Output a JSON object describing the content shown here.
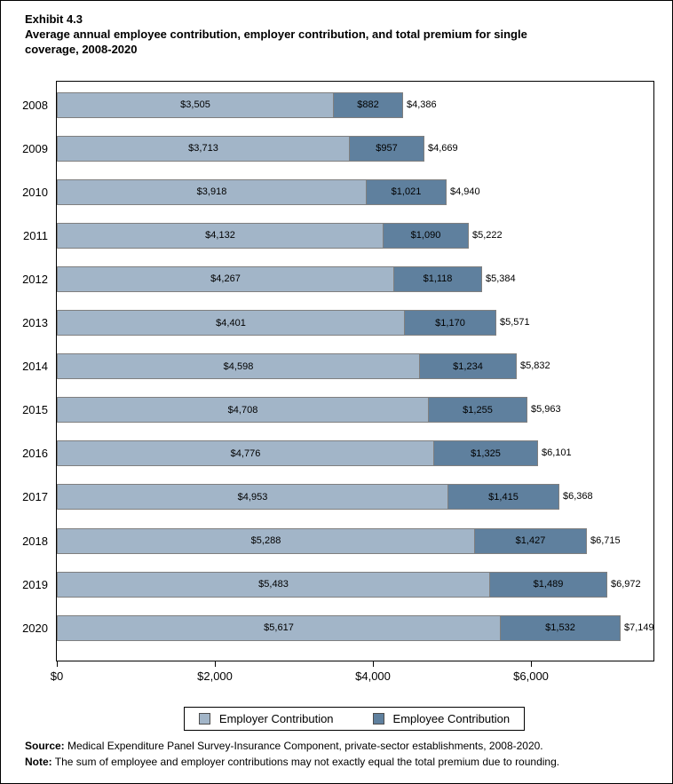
{
  "title": {
    "exhibit": "Exhibit 4.3",
    "caption": "Average annual employee contribution, employer contribution, and total premium for single\ncoverage, 2008-2020"
  },
  "chart_data": {
    "type": "bar",
    "orientation": "horizontal",
    "stacked": true,
    "grid": false,
    "categories": [
      "2008",
      "2009",
      "2010",
      "2011",
      "2012",
      "2013",
      "2014",
      "2015",
      "2016",
      "2017",
      "2018",
      "2019",
      "2020"
    ],
    "series": [
      {
        "name": "Employer Contribution",
        "color": "#a2b5c8",
        "values": [
          3505,
          3713,
          3918,
          4132,
          4267,
          4401,
          4598,
          4708,
          4776,
          4953,
          5288,
          5483,
          5617
        ]
      },
      {
        "name": "Employee Contribution",
        "color": "#5f809e",
        "values": [
          882,
          957,
          1021,
          1090,
          1118,
          1170,
          1234,
          1255,
          1325,
          1415,
          1427,
          1489,
          1532
        ]
      }
    ],
    "totals": [
      4386,
      4669,
      4940,
      5222,
      5384,
      5571,
      5832,
      5963,
      6101,
      6368,
      6715,
      6972,
      7149
    ],
    "value_prefix": "$",
    "xlabel": "",
    "ylabel": "",
    "xlim": [
      0,
      7550
    ],
    "x_ticks": [
      0,
      2000,
      4000,
      6000
    ],
    "x_tick_labels": [
      "$0",
      "$2,000",
      "$4,000",
      "$6,000"
    ],
    "bar_border_color": "#7f7f7f",
    "legend_position": "bottom"
  },
  "legend": {
    "employer": "Employer Contribution",
    "employee": "Employee Contribution"
  },
  "footer": {
    "source_label": "Source:",
    "source_text": " Medical Expenditure Panel Survey-Insurance Component, private-sector establishments, 2008-2020.",
    "note_label": "Note:",
    "note_text": " The sum of employee and employer contributions may not exactly equal the total premium due to rounding."
  }
}
